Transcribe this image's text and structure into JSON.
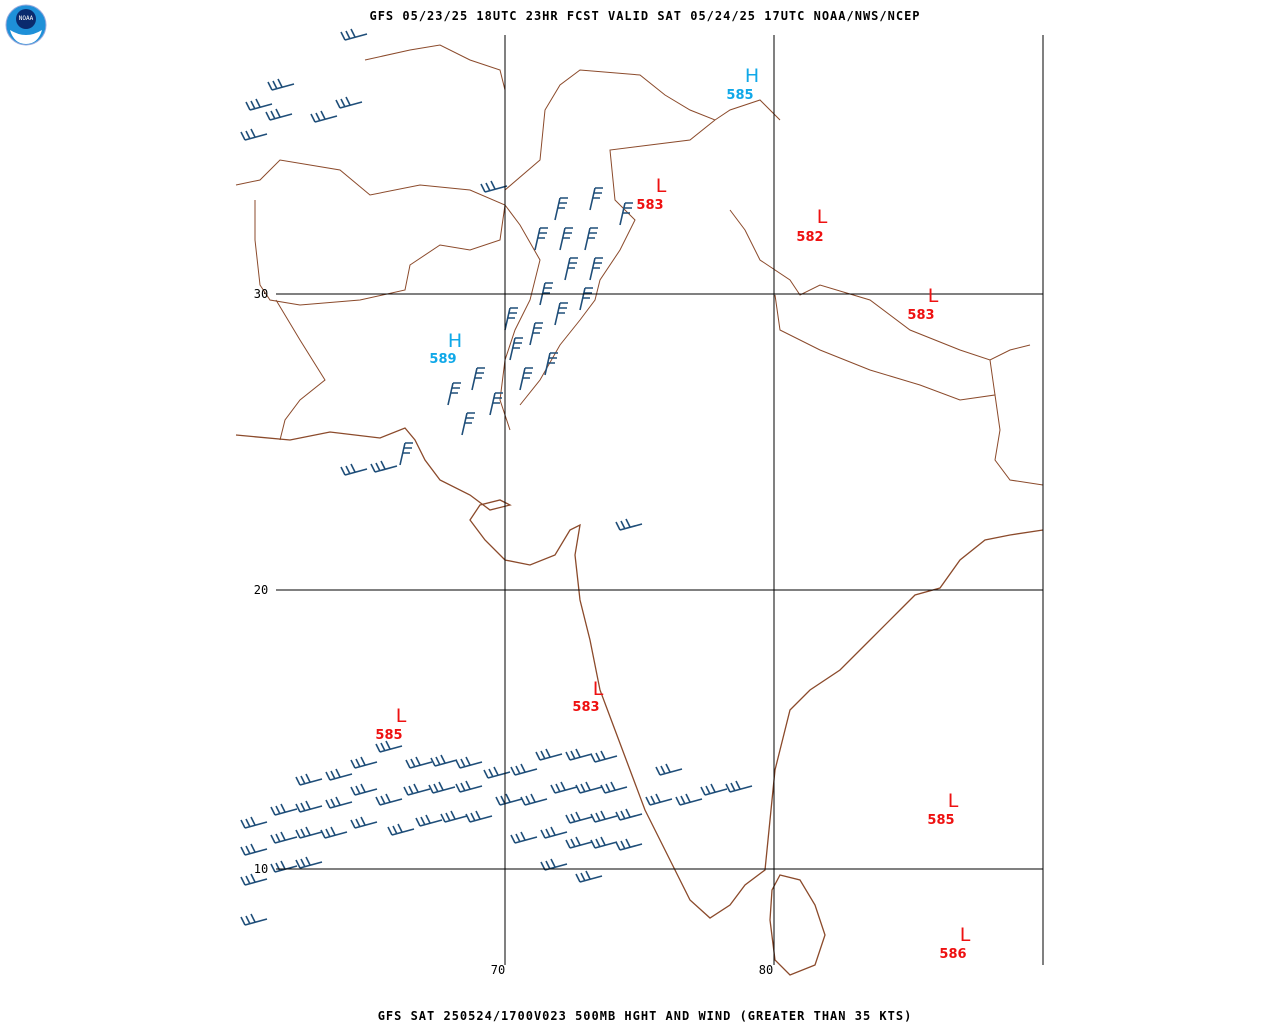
{
  "header": "GFS 05/23/25 18UTC 23HR FCST VALID SAT 05/24/25 17UTC NOAA/NWS/NCEP",
  "footer": "GFS SAT 250524/1700V023 500MB HGHT AND WIND (GREATER THAN 35 KTS)",
  "logo": "NOAA",
  "lat_labels": [
    30,
    20,
    10
  ],
  "lon_labels": [
    70,
    80
  ],
  "centers": [
    {
      "kind": "H",
      "value": 585
    },
    {
      "kind": "L",
      "value": 583
    },
    {
      "kind": "L",
      "value": 582
    },
    {
      "kind": "L",
      "value": 583
    },
    {
      "kind": "H",
      "value": 589
    },
    {
      "kind": "L",
      "value": 585
    },
    {
      "kind": "L",
      "value": 583
    },
    {
      "kind": "L",
      "value": 585
    },
    {
      "kind": "L",
      "value": 586
    }
  ]
}
